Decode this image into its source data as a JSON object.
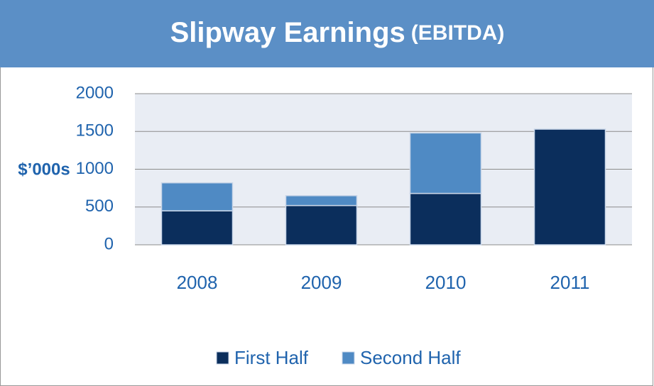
{
  "chart_data": {
    "type": "stacked-bar",
    "title": "Slipway Earnings",
    "subtitle": "(EBITDA)",
    "y_label": "$’000s",
    "categories": [
      "2008",
      "2009",
      "2010",
      "2011"
    ],
    "series": [
      {
        "name": "First Half",
        "color": "#0b2e5c",
        "values": [
          450,
          520,
          680,
          1530
        ]
      },
      {
        "name": "Second Half",
        "color": "#4f8ac4",
        "values": [
          370,
          130,
          800,
          0
        ]
      }
    ],
    "ylim": [
      0,
      2000
    ],
    "yticks": [
      0,
      500,
      1000,
      1500,
      2000
    ],
    "grid": true
  }
}
